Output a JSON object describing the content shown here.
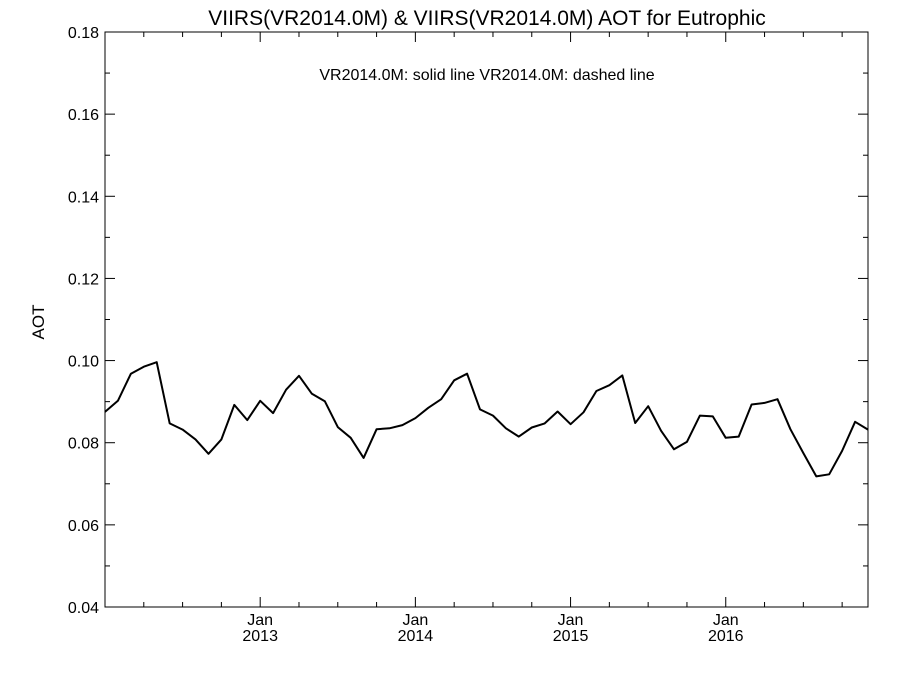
{
  "chart_data": {
    "type": "line",
    "title": "VIIRS(VR2014.0M) & VIIRS(VR2014.0M)  AOT for Eutrophic",
    "annotation": "VR2014.0M: solid line   VR2014.0M: dashed line",
    "ylabel": "AOT",
    "xlabel": "",
    "ylim": [
      0.04,
      0.18
    ],
    "xlim": [
      "2012-01",
      "2016-12"
    ],
    "y_ticks": [
      "0.04",
      "0.06",
      "0.08",
      "0.10",
      "0.12",
      "0.14",
      "0.16",
      "0.18"
    ],
    "x_ticks": [
      {
        "month": "2013-01",
        "line1": "Jan",
        "line2": "2013"
      },
      {
        "month": "2014-01",
        "line1": "Jan",
        "line2": "2014"
      },
      {
        "month": "2015-01",
        "line1": "Jan",
        "line2": "2015"
      },
      {
        "month": "2016-01",
        "line1": "Jan",
        "line2": "2016"
      }
    ],
    "grid": false,
    "series": [
      {
        "style": "solid",
        "x": [
          "2012-01",
          "2012-02",
          "2012-03",
          "2012-04",
          "2012-05",
          "2012-06",
          "2012-07",
          "2012-08",
          "2012-09",
          "2012-10",
          "2012-11",
          "2012-12",
          "2013-01",
          "2013-02",
          "2013-03",
          "2013-04",
          "2013-05",
          "2013-06",
          "2013-07",
          "2013-08",
          "2013-09",
          "2013-10",
          "2013-11",
          "2013-12",
          "2014-01",
          "2014-02",
          "2014-03",
          "2014-04",
          "2014-05",
          "2014-06",
          "2014-07",
          "2014-08",
          "2014-09",
          "2014-10",
          "2014-11",
          "2014-12",
          "2015-01",
          "2015-02",
          "2015-03",
          "2015-04",
          "2015-05",
          "2015-06",
          "2015-07",
          "2015-08",
          "2015-09",
          "2015-10",
          "2015-11",
          "2015-12",
          "2016-01",
          "2016-02",
          "2016-03",
          "2016-04",
          "2016-05",
          "2016-06",
          "2016-07",
          "2016-08",
          "2016-09",
          "2016-10",
          "2016-11",
          "2016-12"
        ],
        "values": [
          0.0875,
          0.0902,
          0.0968,
          0.0985,
          0.0996,
          0.0847,
          0.0832,
          0.0808,
          0.0773,
          0.0808,
          0.0892,
          0.0855,
          0.0902,
          0.0872,
          0.0929,
          0.0963,
          0.0919,
          0.0901,
          0.0838,
          0.0812,
          0.0763,
          0.0833,
          0.0835,
          0.0843,
          0.086,
          0.0885,
          0.0906,
          0.0952,
          0.0968,
          0.0881,
          0.0866,
          0.0835,
          0.0815,
          0.0837,
          0.0847,
          0.0876,
          0.0845,
          0.0874,
          0.0926,
          0.094,
          0.0964,
          0.0848,
          0.0889,
          0.0829,
          0.0784,
          0.0802,
          0.0866,
          0.0864,
          0.0812,
          0.0815,
          0.0893,
          0.0897,
          0.0906,
          0.0833,
          0.0775,
          0.0718,
          0.0723,
          0.078,
          0.0851,
          0.0832
        ]
      }
    ]
  }
}
